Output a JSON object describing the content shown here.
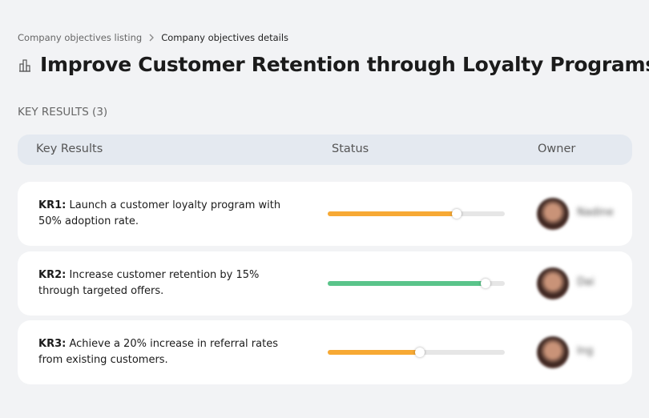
{
  "breadcrumb": [
    "Company objectives listing",
    "Company objectives details"
  ],
  "title": "Improve Customer Retention through Loyalty Programs",
  "section_label": "KEY RESULTS (3)",
  "table": {
    "columns": [
      "Key Results",
      "Status",
      "Owner"
    ],
    "rows": [
      {
        "id": "KR1:",
        "text": "Launch a customer loyalty program with 50% adoption rate.",
        "progress": 73,
        "color": "#f7a934",
        "owner": "Nadine"
      },
      {
        "id": "KR2:",
        "text": "Increase customer retention by 15% through targeted offers.",
        "progress": 89,
        "color": "#5ac48a",
        "owner": "Dai"
      },
      {
        "id": "KR3:",
        "text": "Achieve a 20% increase in referral rates from existing customers.",
        "progress": 52,
        "color": "#f7a934",
        "owner": "Ing"
      }
    ]
  }
}
